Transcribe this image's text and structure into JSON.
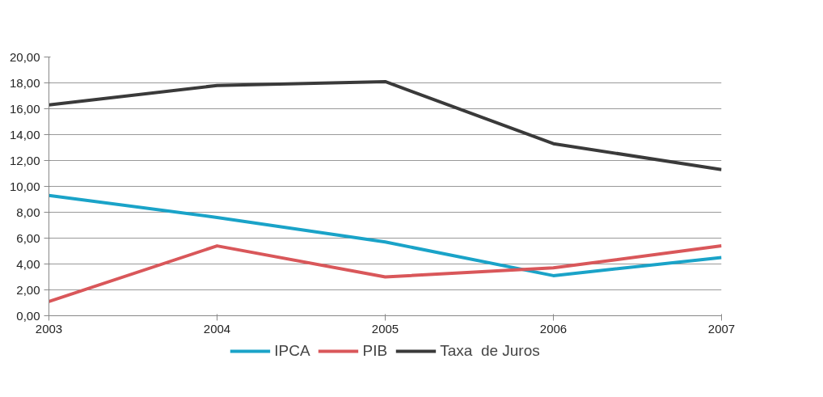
{
  "chart_data": {
    "type": "line",
    "x": [
      2003,
      2004,
      2005,
      2006,
      2007
    ],
    "xlim": [
      2003,
      2007
    ],
    "xticks": [
      2003,
      2004,
      2005,
      2006,
      2007
    ],
    "ylim": [
      0,
      20
    ],
    "yticks": [
      {
        "value": 0,
        "label": "0,00"
      },
      {
        "value": 2,
        "label": "2,00"
      },
      {
        "value": 4,
        "label": "4,00"
      },
      {
        "value": 6,
        "label": "6,00"
      },
      {
        "value": 8,
        "label": "8,00"
      },
      {
        "value": 10,
        "label": "10,00"
      },
      {
        "value": 12,
        "label": "12,00"
      },
      {
        "value": 14,
        "label": "14,00"
      },
      {
        "value": 16,
        "label": "16,00"
      },
      {
        "value": 18,
        "label": "18,00"
      },
      {
        "value": 20,
        "label": "20,00"
      }
    ],
    "grid": "y",
    "legend": "bottom",
    "marker": "none",
    "line_style": "solid",
    "series": [
      {
        "name": "IPCA",
        "color": "#1aa3c8",
        "values": [
          9.3,
          7.6,
          5.7,
          3.1,
          4.5
        ]
      },
      {
        "name": "PIB",
        "color": "#d9575a",
        "values": [
          1.1,
          5.4,
          3.0,
          3.7,
          5.4
        ]
      },
      {
        "name": "Taxa  de Juros",
        "color": "#3a3a3a",
        "values": [
          16.3,
          17.8,
          18.1,
          13.3,
          11.3
        ]
      }
    ]
  }
}
